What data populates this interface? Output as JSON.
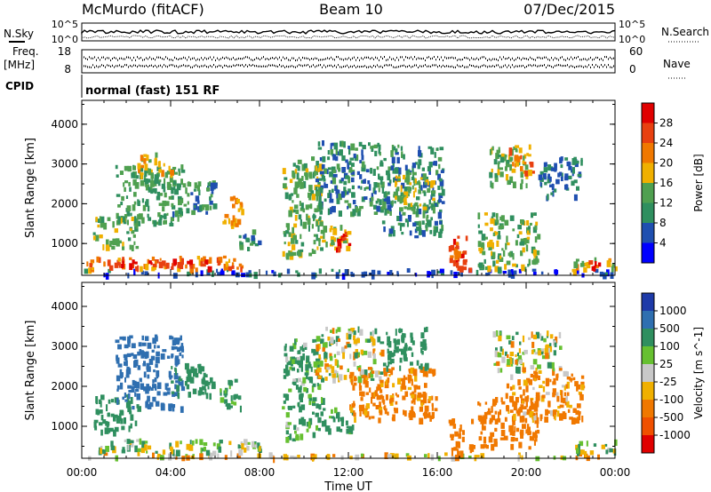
{
  "header": {
    "title": "McMurdo (fitACF)",
    "beam": "Beam 10",
    "date": "07/Dec/2015"
  },
  "top_panels": {
    "nsky_label": "N.Sky",
    "nsky_ticks": [
      "10^5",
      "10^0"
    ],
    "nsearch_label": "N.Search",
    "nsearch_ticks": [
      "10^5",
      "10^0"
    ],
    "freq_label": "Freq.",
    "freq_unit": "[MHz]",
    "freq_ticks": [
      "18",
      "8"
    ],
    "nave_label": "Nave",
    "nave_ticks": [
      "60",
      "0"
    ],
    "cpid_label": "CPID",
    "cpid_value": "normal (fast) 151 RF"
  },
  "colors": {
    "power_scale": [
      "#0000ff",
      "#1f4fb0",
      "#2f8f5f",
      "#4fa050",
      "#f0b000",
      "#f07800",
      "#e84010",
      "#e00000"
    ],
    "velocity_scale": [
      "#1e3aa8",
      "#2f6fb0",
      "#2f8f5f",
      "#66c030",
      "#c8c8c8",
      "#f0b000",
      "#f07800",
      "#f05000",
      "#e00000"
    ]
  },
  "chart_data": [
    {
      "type": "heatmap",
      "name": "power",
      "ylabel": "Slant Range [km]",
      "yticks": [
        "1000",
        "2000",
        "3000",
        "4000"
      ],
      "ylim": [
        200,
        4600
      ],
      "xticks": [
        "00:00",
        "04:00",
        "08:00",
        "12:00",
        "16:00",
        "20:00",
        "00:00"
      ],
      "xlim_hours": [
        0,
        24
      ],
      "colorbar_label": "Power [dB]",
      "colorbar_ticks": [
        "4",
        "8",
        "12",
        "16",
        "20",
        "24",
        "28"
      ],
      "blobs": [
        {
          "t0": 0.0,
          "t1": 24.0,
          "r0": 250,
          "r1": 380,
          "v": 6
        },
        {
          "t0": 0.2,
          "t1": 7.2,
          "r0": 380,
          "r1": 700,
          "v": 22
        },
        {
          "t0": 1.5,
          "t1": 5.8,
          "r0": 420,
          "r1": 620,
          "v": 28
        },
        {
          "t0": 0.5,
          "t1": 2.5,
          "r0": 900,
          "r1": 1700,
          "v": 14
        },
        {
          "t0": 1.5,
          "t1": 4.5,
          "r0": 1500,
          "r1": 3000,
          "v": 12
        },
        {
          "t0": 2.5,
          "t1": 4.0,
          "r0": 2700,
          "r1": 3300,
          "v": 18
        },
        {
          "t0": 4.0,
          "t1": 6.0,
          "r0": 1800,
          "r1": 2600,
          "v": 10
        },
        {
          "t0": 6.2,
          "t1": 7.2,
          "r0": 1500,
          "r1": 2200,
          "v": 20
        },
        {
          "t0": 7.0,
          "t1": 8.0,
          "r0": 900,
          "r1": 1400,
          "v": 10
        },
        {
          "t0": 9.0,
          "t1": 10.8,
          "r0": 700,
          "r1": 3200,
          "v": 14
        },
        {
          "t0": 10.8,
          "t1": 12.0,
          "r0": 900,
          "r1": 1500,
          "v": 16
        },
        {
          "t0": 11.4,
          "t1": 12.0,
          "r0": 800,
          "r1": 1300,
          "v": 28
        },
        {
          "t0": 10.5,
          "t1": 13.5,
          "r0": 1800,
          "r1": 3600,
          "v": 10
        },
        {
          "t0": 13.5,
          "t1": 16.2,
          "r0": 1200,
          "r1": 3500,
          "v": 10
        },
        {
          "t0": 14.0,
          "t1": 15.8,
          "r0": 1900,
          "r1": 2800,
          "v": 16
        },
        {
          "t0": 16.5,
          "t1": 17.6,
          "r0": 380,
          "r1": 1200,
          "v": 26
        },
        {
          "t0": 17.8,
          "t1": 20.5,
          "r0": 400,
          "r1": 1800,
          "v": 14
        },
        {
          "t0": 18.3,
          "t1": 20.0,
          "r0": 2500,
          "r1": 3500,
          "v": 14
        },
        {
          "t0": 19.2,
          "t1": 20.3,
          "r0": 2800,
          "r1": 3500,
          "v": 22
        },
        {
          "t0": 20.5,
          "t1": 22.5,
          "r0": 2200,
          "r1": 3200,
          "v": 8
        },
        {
          "t0": 22.0,
          "t1": 24.0,
          "r0": 350,
          "r1": 700,
          "v": 18
        },
        {
          "t0": 22.8,
          "t1": 23.6,
          "r0": 380,
          "r1": 600,
          "v": 28
        }
      ]
    },
    {
      "type": "heatmap",
      "name": "velocity",
      "ylabel": "Slant Range [km]",
      "yticks": [
        "1000",
        "2000",
        "3000",
        "4000"
      ],
      "ylim": [
        200,
        4600
      ],
      "xticks": [
        "00:00",
        "04:00",
        "08:00",
        "12:00",
        "16:00",
        "20:00",
        "00:00"
      ],
      "xlim_hours": [
        0,
        24
      ],
      "xlabel": "Time UT",
      "colorbar_label": "Velocity [m s^-1]",
      "colorbar_ticks": [
        "1000",
        "500",
        "100",
        "25",
        "-25",
        "-100",
        "-500",
        "-1000"
      ],
      "blobs": [
        {
          "t0": 0.0,
          "t1": 24.0,
          "r0": 250,
          "r1": 350,
          "v": -60
        },
        {
          "t0": 0.5,
          "t1": 8.0,
          "r0": 380,
          "r1": 700,
          "v": 60
        },
        {
          "t0": 0.5,
          "t1": 2.5,
          "r0": 900,
          "r1": 1800,
          "v": 300
        },
        {
          "t0": 1.5,
          "t1": 4.5,
          "r0": 1500,
          "r1": 3300,
          "v": 700
        },
        {
          "t0": 4.0,
          "t1": 6.0,
          "r0": 1800,
          "r1": 2600,
          "v": 300
        },
        {
          "t0": 6.2,
          "t1": 7.2,
          "r0": 1500,
          "r1": 2200,
          "v": 200
        },
        {
          "t0": 9.0,
          "t1": 10.8,
          "r0": 700,
          "r1": 3200,
          "v": 150
        },
        {
          "t0": 10.8,
          "t1": 12.2,
          "r0": 900,
          "r1": 1500,
          "v": 200
        },
        {
          "t0": 10.5,
          "t1": 13.5,
          "r0": 2200,
          "r1": 3500,
          "v": 0
        },
        {
          "t0": 12.0,
          "t1": 16.0,
          "r0": 1200,
          "r1": 2500,
          "v": -200
        },
        {
          "t0": 13.5,
          "t1": 15.5,
          "r0": 2500,
          "r1": 3500,
          "v": 300
        },
        {
          "t0": 16.5,
          "t1": 17.6,
          "r0": 380,
          "r1": 1200,
          "v": -300
        },
        {
          "t0": 17.8,
          "t1": 20.5,
          "r0": 500,
          "r1": 1800,
          "v": -250
        },
        {
          "t0": 18.5,
          "t1": 21.5,
          "r0": 2400,
          "r1": 3400,
          "v": 0
        },
        {
          "t0": 19.0,
          "t1": 22.5,
          "r0": 1200,
          "r1": 2400,
          "v": -150
        },
        {
          "t0": 22.0,
          "t1": 24.0,
          "r0": 380,
          "r1": 700,
          "v": 60
        }
      ]
    }
  ]
}
